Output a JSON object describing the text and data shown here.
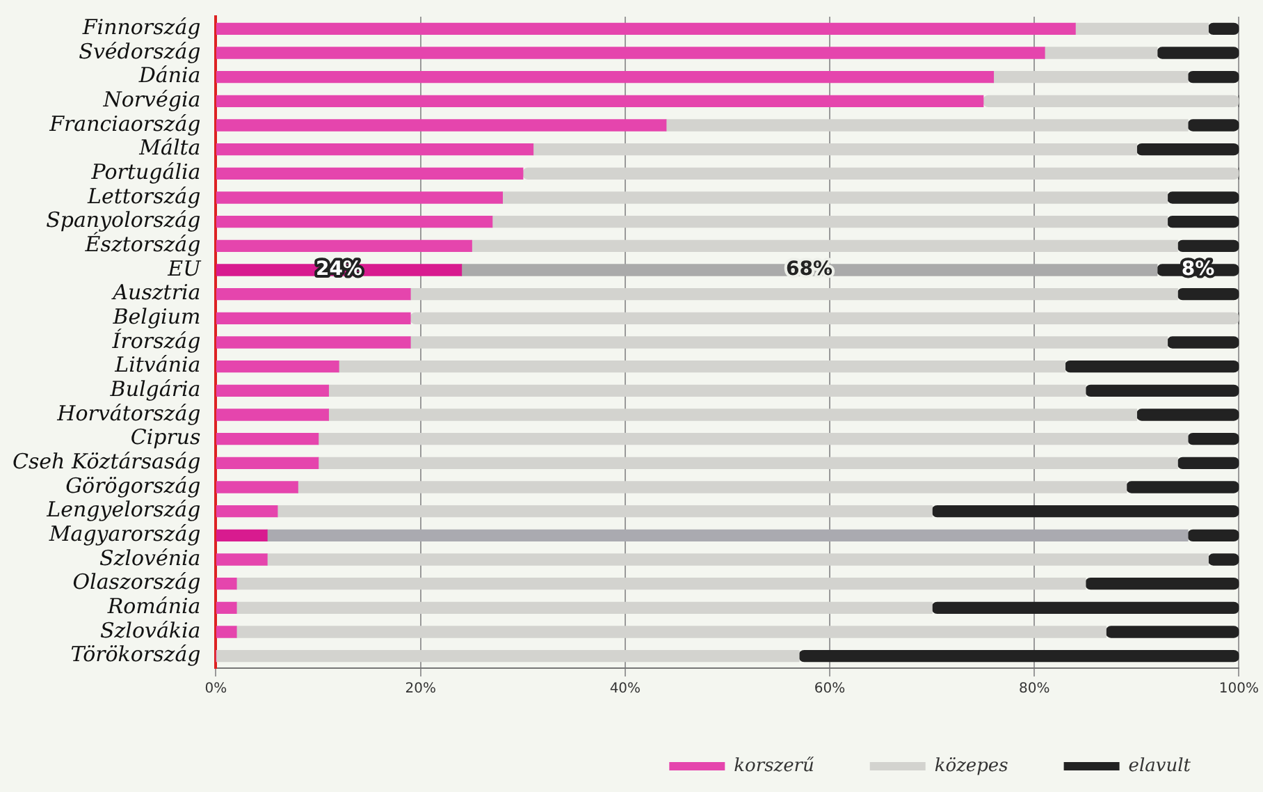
{
  "chart_data": {
    "type": "bar",
    "orientation": "horizontal",
    "stacked": true,
    "categories": [
      "Finnország",
      "Svédország",
      "Dánia",
      "Norvégia",
      "Franciaország",
      "Málta",
      "Portugália",
      "Lettország",
      "Spanyolország",
      "Észtország",
      "EU",
      "Ausztria",
      "Belgium",
      "Írország",
      "Litvánia",
      "Bulgária",
      "Horvátország",
      "Ciprus",
      "Cseh Köztársaság",
      "Görögország",
      "Lengyelország",
      "Magyarország",
      "Szlovénia",
      "Olaszország",
      "Románia",
      "Szlovákia",
      "Törökország"
    ],
    "series": [
      {
        "name": "korszerű",
        "color": "#e545ad",
        "colors": [
          "#e545ad",
          "#e545ad",
          "#e545ad",
          "#e545ad",
          "#e545ad",
          "#e545ad",
          "#e545ad",
          "#e545ad",
          "#e545ad",
          "#e545ad",
          "#d81b8f",
          "#e545ad",
          "#e545ad",
          "#e545ad",
          "#e545ad",
          "#e545ad",
          "#e545ad",
          "#e545ad",
          "#e545ad",
          "#e545ad",
          "#e545ad",
          "#d81b8f",
          "#e545ad",
          "#e545ad",
          "#e545ad",
          "#e545ad",
          "#e545ad"
        ],
        "values": [
          84,
          81,
          76,
          75,
          44,
          31,
          30,
          28,
          27,
          25,
          24,
          19,
          19,
          19,
          12,
          11,
          11,
          10,
          10,
          8,
          6,
          5,
          5,
          2,
          2,
          2,
          0
        ],
        "value_labels": [
          null,
          null,
          null,
          null,
          null,
          null,
          null,
          null,
          null,
          null,
          "24%",
          null,
          null,
          null,
          null,
          null,
          null,
          null,
          null,
          null,
          null,
          null,
          null,
          null,
          null,
          null,
          null
        ]
      },
      {
        "name": "közepes",
        "color": "#d3d3cf",
        "colors": [
          "#d3d3cf",
          "#d3d3cf",
          "#d3d3cf",
          "#d3d3cf",
          "#d3d3cf",
          "#d3d3cf",
          "#d3d3cf",
          "#d3d3cf",
          "#d3d3cf",
          "#d3d3cf",
          "#aaaaaa",
          "#d3d3cf",
          "#d3d3cf",
          "#d3d3cf",
          "#d3d3cf",
          "#d3d3cf",
          "#d3d3cf",
          "#d3d3cf",
          "#d3d3cf",
          "#d3d3cf",
          "#d3d3cf",
          "#aaaab0",
          "#d3d3cf",
          "#d3d3cf",
          "#d3d3cf",
          "#d3d3cf",
          "#d3d3cf"
        ],
        "values": [
          13,
          11,
          19,
          25,
          51,
          59,
          70,
          65,
          66,
          69,
          68,
          75,
          81,
          74,
          71,
          74,
          79,
          85,
          84,
          81,
          64,
          90,
          92,
          83,
          68,
          85,
          57
        ],
        "value_labels": [
          null,
          null,
          null,
          null,
          null,
          null,
          null,
          null,
          null,
          null,
          "68%",
          null,
          null,
          null,
          null,
          null,
          null,
          null,
          null,
          null,
          null,
          null,
          null,
          null,
          null,
          null,
          null
        ]
      },
      {
        "name": "elavult",
        "color": "#222222",
        "values": [
          3,
          8,
          5,
          0,
          5,
          10,
          0,
          7,
          7,
          6,
          8,
          6,
          0,
          7,
          17,
          15,
          10,
          5,
          6,
          11,
          30,
          5,
          3,
          15,
          30,
          13,
          43
        ],
        "value_labels": [
          null,
          null,
          null,
          null,
          null,
          null,
          null,
          null,
          null,
          null,
          "8%",
          null,
          null,
          null,
          null,
          null,
          null,
          null,
          null,
          null,
          null,
          null,
          null,
          null,
          null,
          null,
          null
        ]
      }
    ],
    "xlim": [
      0,
      100
    ],
    "xticks": [
      {
        "value": 0,
        "label": "0%"
      },
      {
        "value": 20,
        "label": "20%"
      },
      {
        "value": 40,
        "label": "40%"
      },
      {
        "value": 60,
        "label": "60%"
      },
      {
        "value": 80,
        "label": "80%"
      },
      {
        "value": 100,
        "label": "100%"
      }
    ],
    "grid": "x",
    "legend": "bottom"
  }
}
